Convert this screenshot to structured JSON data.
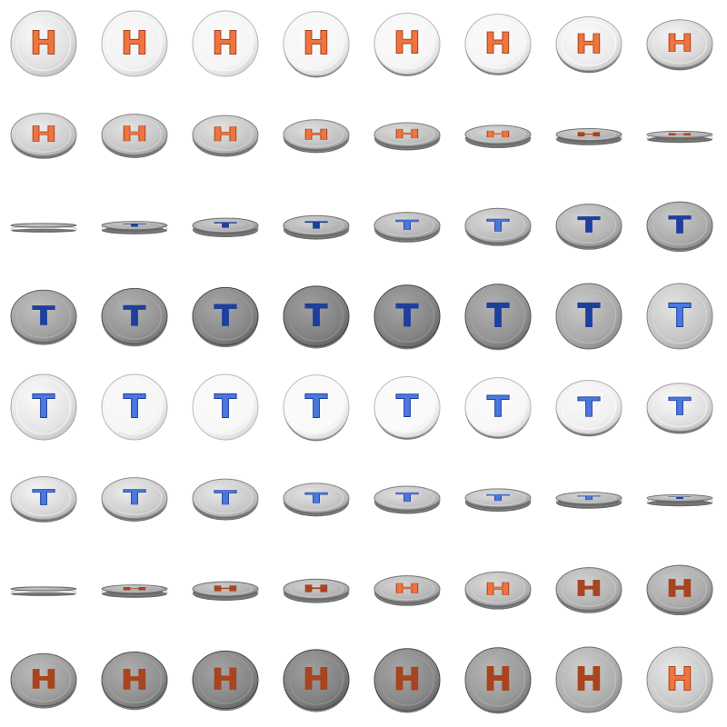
{
  "sprite_sheet": {
    "columns": 8,
    "rows": 8,
    "face_letters": {
      "heads": "H",
      "tails": "T"
    },
    "colors": {
      "heads_letter": "#f0743e",
      "heads_letter_dark": "#a8441f",
      "tails_letter": "#4a78e0",
      "tails_letter_dark": "#1f3f9c",
      "rim_light": "#e6e6e6",
      "rim_dark": "#6a6a6a",
      "background": "#ffffff"
    },
    "frames": [
      {
        "face": "H",
        "squash": 1.0,
        "tone": 0.85
      },
      {
        "face": "H",
        "squash": 1.0,
        "tone": 0.95
      },
      {
        "face": "H",
        "squash": 1.0,
        "tone": 0.97
      },
      {
        "face": "H",
        "squash": 0.98,
        "tone": 0.98
      },
      {
        "face": "H",
        "squash": 0.93,
        "tone": 0.98
      },
      {
        "face": "H",
        "squash": 0.9,
        "tone": 0.97
      },
      {
        "face": "H",
        "squash": 0.82,
        "tone": 0.92
      },
      {
        "face": "H",
        "squash": 0.73,
        "tone": 0.8
      },
      {
        "face": "H",
        "squash": 0.65,
        "tone": 0.75
      },
      {
        "face": "H",
        "squash": 0.62,
        "tone": 0.7
      },
      {
        "face": "H",
        "squash": 0.58,
        "tone": 0.7
      },
      {
        "face": "H",
        "squash": 0.45,
        "tone": 0.68
      },
      {
        "face": "H",
        "squash": 0.36,
        "tone": 0.66
      },
      {
        "face": "H",
        "squash": 0.28,
        "tone": 0.64
      },
      {
        "face": "H",
        "squash": 0.18,
        "tone": 0.6
      },
      {
        "face": "H",
        "squash": 0.1,
        "tone": 0.6
      },
      {
        "face": "T",
        "squash": 0.06,
        "tone": 0.55
      },
      {
        "face": "T",
        "squash": 0.12,
        "tone": 0.55
      },
      {
        "face": "T",
        "squash": 0.22,
        "tone": 0.58
      },
      {
        "face": "T",
        "squash": 0.3,
        "tone": 0.6
      },
      {
        "face": "T",
        "squash": 0.4,
        "tone": 0.62
      },
      {
        "face": "T",
        "squash": 0.52,
        "tone": 0.65
      },
      {
        "face": "T",
        "squash": 0.65,
        "tone": 0.6
      },
      {
        "face": "T",
        "squash": 0.72,
        "tone": 0.55
      },
      {
        "face": "T",
        "squash": 0.8,
        "tone": 0.5
      },
      {
        "face": "T",
        "squash": 0.85,
        "tone": 0.42
      },
      {
        "face": "T",
        "squash": 0.88,
        "tone": 0.36
      },
      {
        "face": "T",
        "squash": 0.92,
        "tone": 0.32
      },
      {
        "face": "T",
        "squash": 0.95,
        "tone": 0.34
      },
      {
        "face": "T",
        "squash": 0.98,
        "tone": 0.42
      },
      {
        "face": "T",
        "squash": 1.0,
        "tone": 0.55
      },
      {
        "face": "T",
        "squash": 1.0,
        "tone": 0.7
      },
      {
        "face": "T",
        "squash": 1.0,
        "tone": 0.88
      },
      {
        "face": "T",
        "squash": 1.0,
        "tone": 0.97
      },
      {
        "face": "T",
        "squash": 1.0,
        "tone": 0.99
      },
      {
        "face": "T",
        "squash": 0.98,
        "tone": 1.0
      },
      {
        "face": "T",
        "squash": 0.93,
        "tone": 1.0
      },
      {
        "face": "T",
        "squash": 0.9,
        "tone": 0.99
      },
      {
        "face": "T",
        "squash": 0.82,
        "tone": 0.94
      },
      {
        "face": "T",
        "squash": 0.73,
        "tone": 0.85
      },
      {
        "face": "T",
        "squash": 0.65,
        "tone": 0.8
      },
      {
        "face": "T",
        "squash": 0.62,
        "tone": 0.75
      },
      {
        "face": "T",
        "squash": 0.58,
        "tone": 0.72
      },
      {
        "face": "T",
        "squash": 0.45,
        "tone": 0.7
      },
      {
        "face": "T",
        "squash": 0.36,
        "tone": 0.68
      },
      {
        "face": "T",
        "squash": 0.28,
        "tone": 0.66
      },
      {
        "face": "T",
        "squash": 0.18,
        "tone": 0.62
      },
      {
        "face": "T",
        "squash": 0.1,
        "tone": 0.6
      },
      {
        "face": "H",
        "squash": 0.06,
        "tone": 0.55
      },
      {
        "face": "H",
        "squash": 0.12,
        "tone": 0.55
      },
      {
        "face": "H",
        "squash": 0.22,
        "tone": 0.58
      },
      {
        "face": "H",
        "squash": 0.3,
        "tone": 0.6
      },
      {
        "face": "H",
        "squash": 0.4,
        "tone": 0.62
      },
      {
        "face": "H",
        "squash": 0.52,
        "tone": 0.65
      },
      {
        "face": "H",
        "squash": 0.65,
        "tone": 0.6
      },
      {
        "face": "H",
        "squash": 0.72,
        "tone": 0.55
      },
      {
        "face": "H",
        "squash": 0.8,
        "tone": 0.48
      },
      {
        "face": "H",
        "squash": 0.85,
        "tone": 0.4
      },
      {
        "face": "H",
        "squash": 0.88,
        "tone": 0.35
      },
      {
        "face": "H",
        "squash": 0.92,
        "tone": 0.32
      },
      {
        "face": "H",
        "squash": 0.95,
        "tone": 0.36
      },
      {
        "face": "H",
        "squash": 0.98,
        "tone": 0.45
      },
      {
        "face": "H",
        "squash": 1.0,
        "tone": 0.58
      },
      {
        "face": "H",
        "squash": 1.0,
        "tone": 0.72
      }
    ]
  }
}
